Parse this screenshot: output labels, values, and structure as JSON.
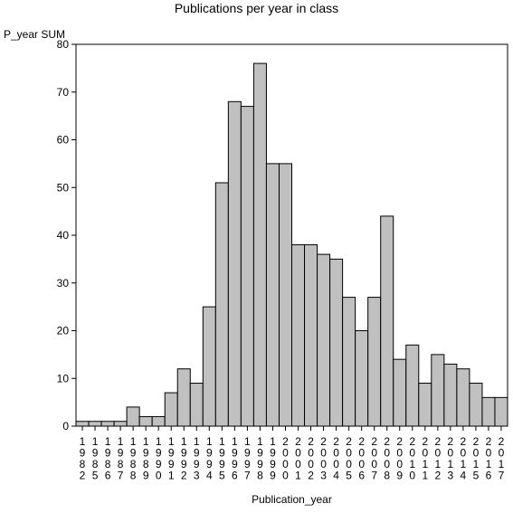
{
  "chart_data": {
    "type": "bar",
    "title": "Publications per year in class",
    "ylabel": "P_year SUM",
    "xlabel": "Publication_year",
    "ylim": [
      0,
      80
    ],
    "yticks": [
      0,
      10,
      20,
      30,
      40,
      50,
      60,
      70,
      80
    ],
    "grid": false,
    "bar_color": "#c0c0c0",
    "categories": [
      "1982",
      "1985",
      "1986",
      "1987",
      "1988",
      "1989",
      "1990",
      "1991",
      "1992",
      "1993",
      "1994",
      "1995",
      "1996",
      "1997",
      "1998",
      "1999",
      "2000",
      "2001",
      "2002",
      "2003",
      "2004",
      "2005",
      "2006",
      "2007",
      "2008",
      "2009",
      "2010",
      "2011",
      "2012",
      "2013",
      "2014",
      "2015",
      "2016",
      "2017"
    ],
    "values": [
      1,
      1,
      1,
      1,
      4,
      2,
      2,
      7,
      12,
      9,
      25,
      51,
      68,
      67,
      76,
      55,
      55,
      38,
      38,
      36,
      35,
      27,
      20,
      27,
      44,
      14,
      17,
      9,
      15,
      13,
      12,
      9,
      6,
      6
    ]
  }
}
